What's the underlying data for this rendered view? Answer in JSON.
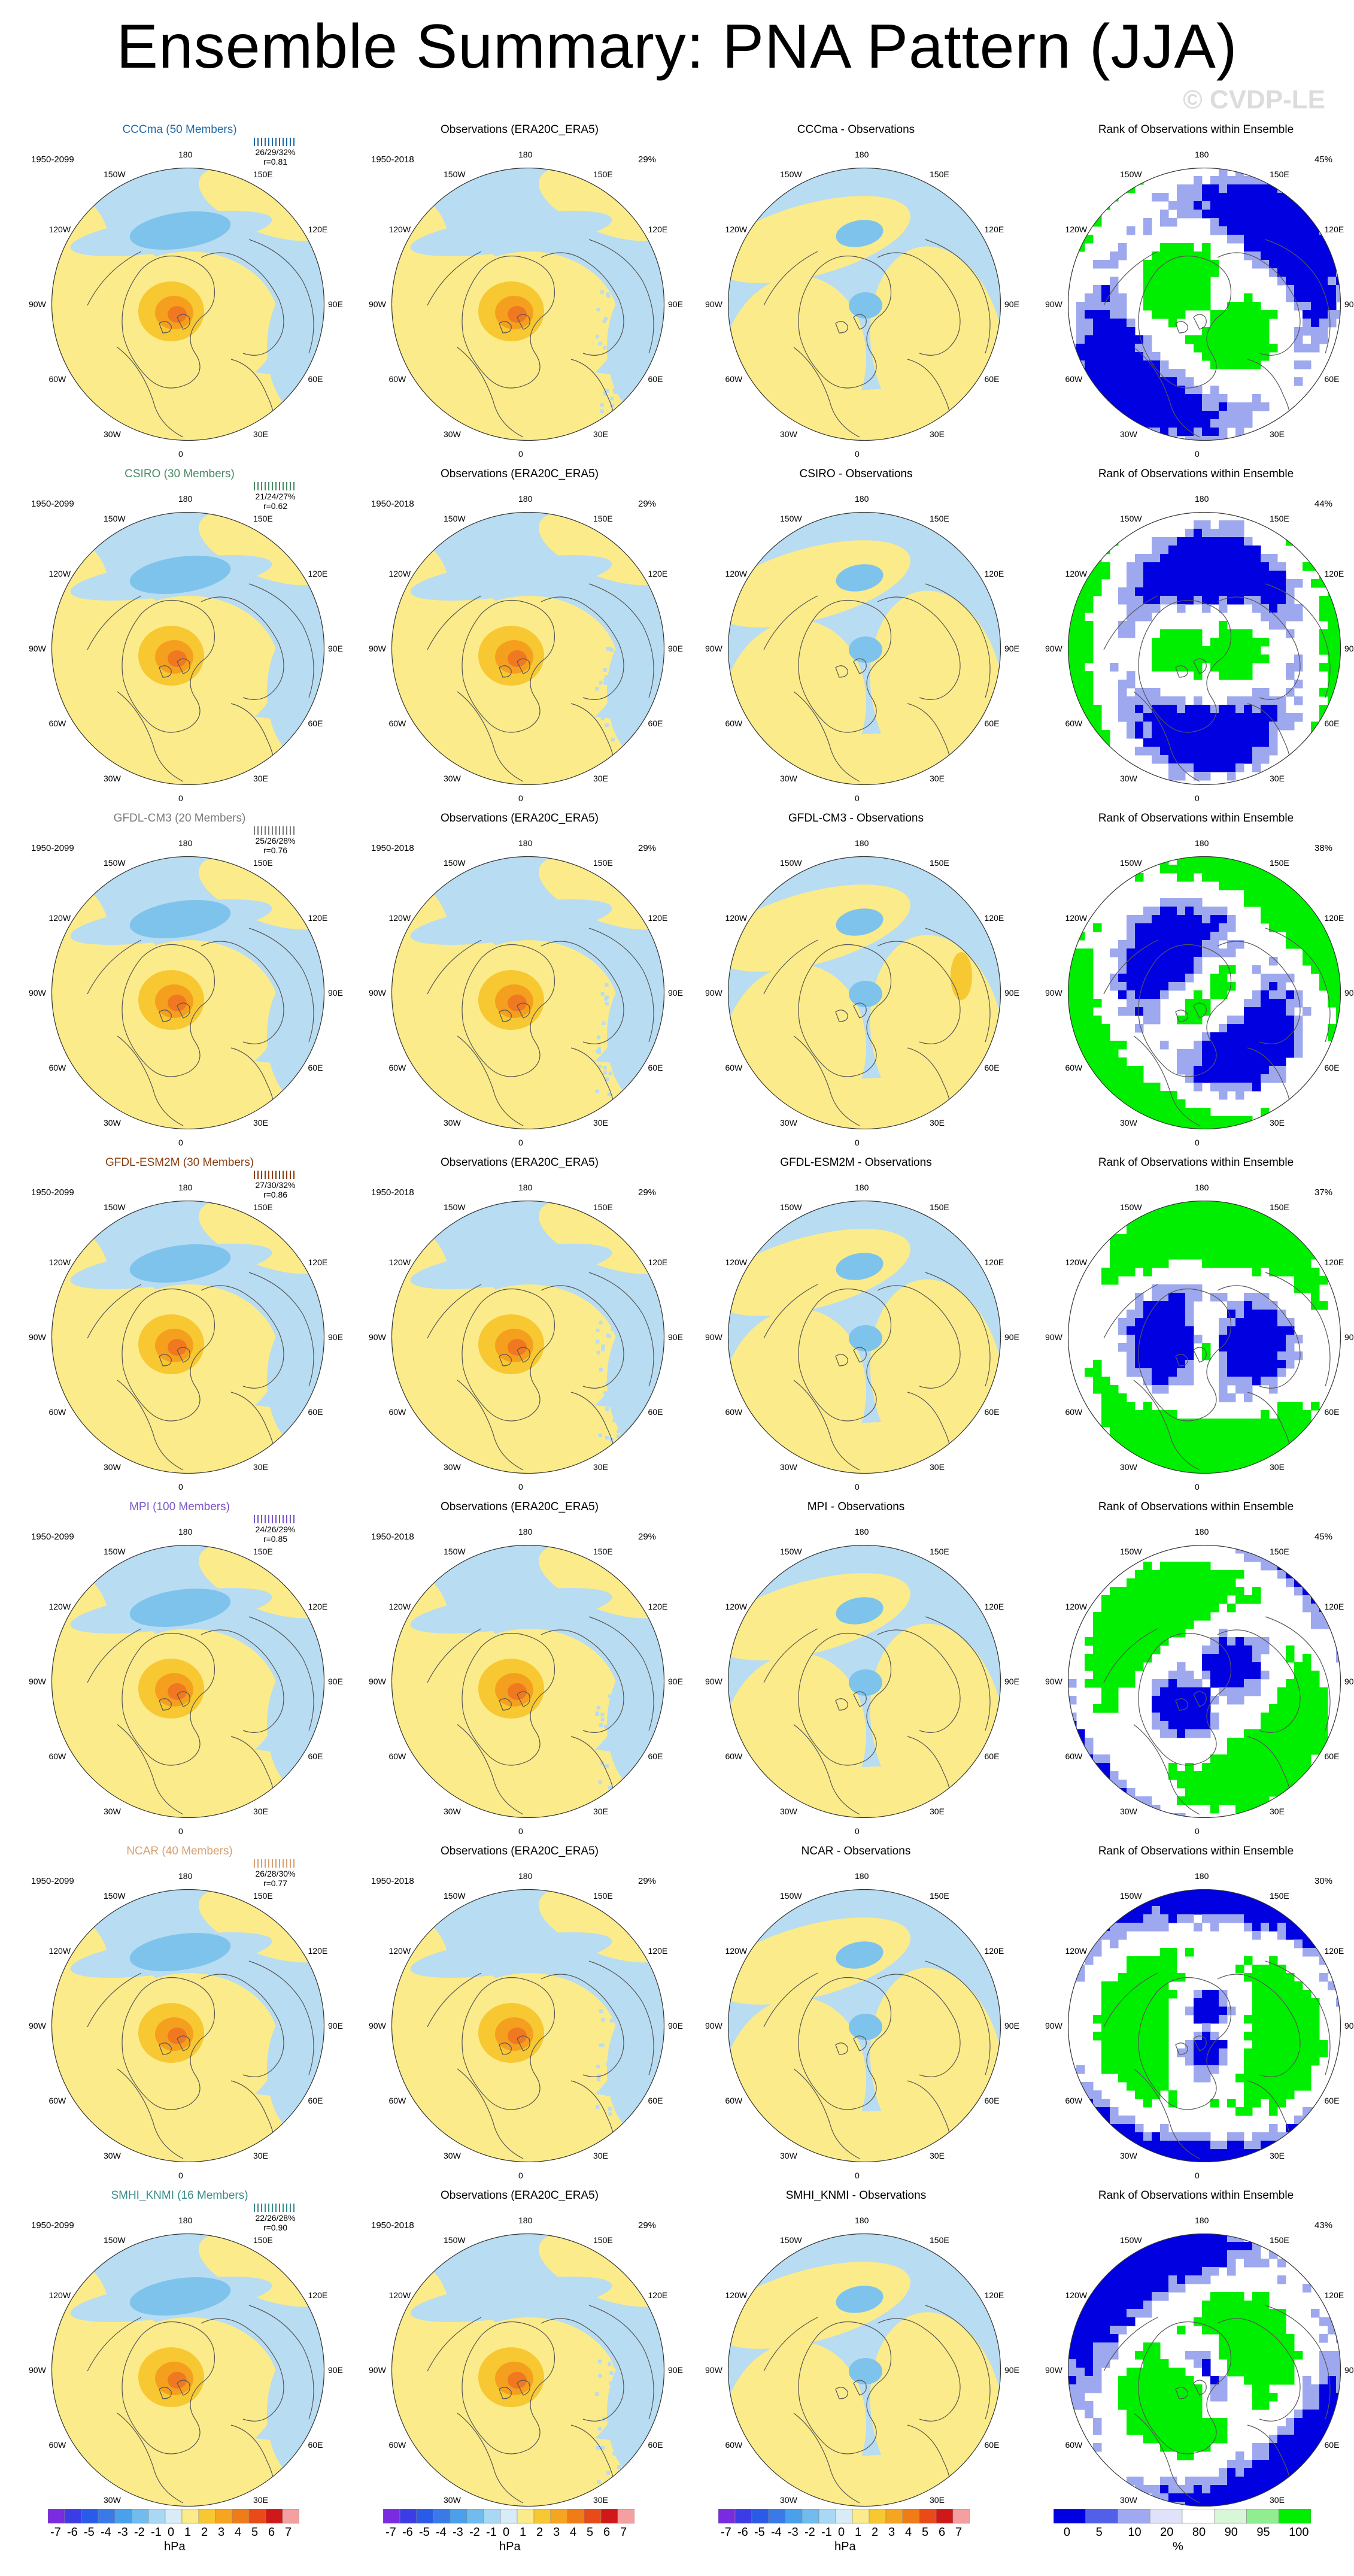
{
  "title": "Ensemble Summary: PNA Pattern (JJA)",
  "watermark": "© CVDP-LE",
  "colors": {
    "positive_light": "#fbeb8a",
    "positive_mid": "#f7c832",
    "positive_strong": "#f59f1f",
    "positive_core": "#f07820",
    "negative_light": "#b8dcf1",
    "negative_mid": "#7ec3ec",
    "negative_strong": "#4aa8e6",
    "rank_low": "#0000e0",
    "rank_mid": "#9ea8ee",
    "rank_high": "#00ee00"
  },
  "lon_labels": [
    "180",
    "150E",
    "120E",
    "90E",
    "60E",
    "30E",
    "0",
    "30W",
    "60W",
    "90W",
    "120W",
    "150W"
  ],
  "rows": [
    {
      "model": "CCCma (50 Members)",
      "model_color": "#1f6aa8",
      "model_period": "1950-2099",
      "stats": "26/29/32%",
      "r": "r=0.81",
      "obs_title": "Observations (ERA20C_ERA5)",
      "obs_period": "1950-2018",
      "obs_pct": "29%",
      "diff_title": "CCCma - Observations",
      "rank_title": "Rank of Observations within Ensemble",
      "rank_pct": "45%"
    },
    {
      "model": "CSIRO (30 Members)",
      "model_color": "#4a8a64",
      "model_period": "1950-2099",
      "stats": "21/24/27%",
      "r": "r=0.62",
      "obs_title": "Observations (ERA20C_ERA5)",
      "obs_period": "1950-2018",
      "obs_pct": "29%",
      "diff_title": "CSIRO - Observations",
      "rank_title": "Rank of Observations within Ensemble",
      "rank_pct": "44%"
    },
    {
      "model": "GFDL-CM3 (20 Members)",
      "model_color": "#7a7a7a",
      "model_period": "1950-2099",
      "stats": "25/26/28%",
      "r": "r=0.76",
      "obs_title": "Observations (ERA20C_ERA5)",
      "obs_period": "1950-2018",
      "obs_pct": "29%",
      "diff_title": "GFDL-CM3 - Observations",
      "rank_title": "Rank of Observations within Ensemble",
      "rank_pct": "38%"
    },
    {
      "model": "GFDL-ESM2M (30 Members)",
      "model_color": "#8a3d10",
      "model_period": "1950-2099",
      "stats": "27/30/32%",
      "r": "r=0.86",
      "obs_title": "Observations (ERA20C_ERA5)",
      "obs_period": "1950-2018",
      "obs_pct": "29%",
      "diff_title": "GFDL-ESM2M - Observations",
      "rank_title": "Rank of Observations within Ensemble",
      "rank_pct": "37%"
    },
    {
      "model": "MPI (100 Members)",
      "model_color": "#7a55c8",
      "model_period": "1950-2099",
      "stats": "24/26/29%",
      "r": "r=0.85",
      "obs_title": "Observations (ERA20C_ERA5)",
      "obs_period": "1950-2018",
      "obs_pct": "29%",
      "diff_title": "MPI - Observations",
      "rank_title": "Rank of Observations within Ensemble",
      "rank_pct": "45%"
    },
    {
      "model": "NCAR (40 Members)",
      "model_color": "#d8a070",
      "model_period": "1950-2099",
      "stats": "26/28/30%",
      "r": "r=0.77",
      "obs_title": "Observations (ERA20C_ERA5)",
      "obs_period": "1950-2018",
      "obs_pct": "29%",
      "diff_title": "NCAR - Observations",
      "rank_title": "Rank of Observations within Ensemble",
      "rank_pct": "30%"
    },
    {
      "model": "SMHI_KNMI (16 Members)",
      "model_color": "#3a8a8a",
      "model_period": "1950-2099",
      "stats": "22/26/28%",
      "r": "r=0.90",
      "obs_title": "Observations (ERA20C_ERA5)",
      "obs_period": "1950-2018",
      "obs_pct": "29%",
      "diff_title": "SMHI_KNMI - Observations",
      "rank_title": "Rank of Observations within Ensemble",
      "rank_pct": "43%"
    }
  ],
  "colorbars": [
    {
      "labels": [
        "-7",
        "-6",
        "-5",
        "-4",
        "-3",
        "-2",
        "-1",
        "0",
        "1",
        "2",
        "3",
        "4",
        "5",
        "6",
        "7"
      ],
      "unit": "hPa",
      "colors": [
        "#7a2ae0",
        "#3c3ce6",
        "#2a5ae8",
        "#3a7ae8",
        "#4aa0ea",
        "#70bcee",
        "#a8d8f4",
        "#d8ecf8",
        "#fbeb8a",
        "#f7c832",
        "#f5a51f",
        "#f07c18",
        "#e84a18",
        "#d01818",
        "#f4a0a0"
      ]
    },
    {
      "labels": [
        "-7",
        "-6",
        "-5",
        "-4",
        "-3",
        "-2",
        "-1",
        "0",
        "1",
        "2",
        "3",
        "4",
        "5",
        "6",
        "7"
      ],
      "unit": "hPa",
      "colors": [
        "#7a2ae0",
        "#3c3ce6",
        "#2a5ae8",
        "#3a7ae8",
        "#4aa0ea",
        "#70bcee",
        "#a8d8f4",
        "#d8ecf8",
        "#fbeb8a",
        "#f7c832",
        "#f5a51f",
        "#f07c18",
        "#e84a18",
        "#d01818",
        "#f4a0a0"
      ]
    },
    {
      "labels": [
        "-7",
        "-6",
        "-5",
        "-4",
        "-3",
        "-2",
        "-1",
        "0",
        "1",
        "2",
        "3",
        "4",
        "5",
        "6",
        "7"
      ],
      "unit": "hPa",
      "colors": [
        "#7a2ae0",
        "#3c3ce6",
        "#2a5ae8",
        "#3a7ae8",
        "#4aa0ea",
        "#70bcee",
        "#a8d8f4",
        "#d8ecf8",
        "#fbeb8a",
        "#f7c832",
        "#f5a51f",
        "#f07c18",
        "#e84a18",
        "#d01818",
        "#f4a0a0"
      ]
    },
    {
      "labels": [
        "0",
        "5",
        "10",
        "20",
        "80",
        "90",
        "95",
        "100"
      ],
      "unit": "%",
      "colors": [
        "#0000e0",
        "#5060e8",
        "#a0a8f0",
        "#dfe2f8",
        "#ffffff",
        "#d8f6d8",
        "#90ee90",
        "#00ee00"
      ]
    }
  ]
}
